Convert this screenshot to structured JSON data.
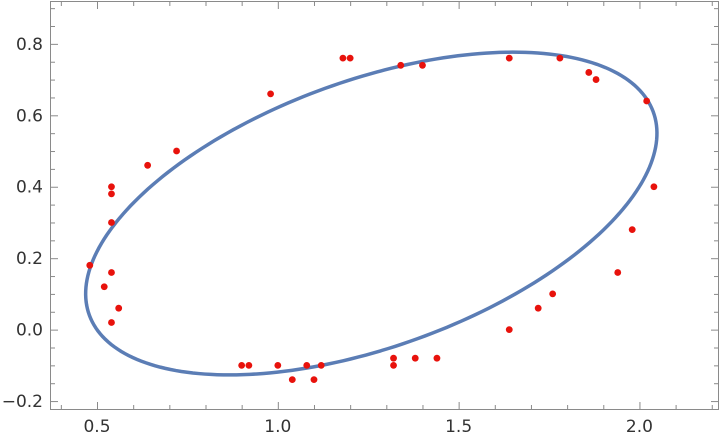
{
  "chart_data": {
    "type": "scatter",
    "title": "",
    "xlabel": "",
    "ylabel": "",
    "xlim": [
      0.37,
      2.22
    ],
    "ylim": [
      -0.225,
      0.92
    ],
    "x_ticks": [
      0.5,
      1.0,
      1.5,
      2.0
    ],
    "x_tick_labels": [
      "0.5",
      "1.0",
      "1.5",
      "2.0"
    ],
    "y_ticks": [
      -0.2,
      0.0,
      0.2,
      0.4,
      0.6,
      0.8
    ],
    "y_tick_labels": [
      "−0.2",
      "0.0",
      "0.2",
      "0.4",
      "0.6",
      "0.8"
    ],
    "grid": false,
    "legend": "none",
    "colors": {
      "points": "#e8120c",
      "ellipse": "#5b7db5",
      "frame": "#8a8a8a"
    },
    "points": [
      [
        0.48,
        0.18
      ],
      [
        0.52,
        0.12
      ],
      [
        0.54,
        0.16
      ],
      [
        0.54,
        0.3
      ],
      [
        0.54,
        0.38
      ],
      [
        0.54,
        0.4
      ],
      [
        0.56,
        0.06
      ],
      [
        0.54,
        0.02
      ],
      [
        0.64,
        0.46
      ],
      [
        0.72,
        0.5
      ],
      [
        0.98,
        0.66
      ],
      [
        1.18,
        0.76
      ],
      [
        1.2,
        0.76
      ],
      [
        1.34,
        0.74
      ],
      [
        1.4,
        0.74
      ],
      [
        1.64,
        0.76
      ],
      [
        1.78,
        0.76
      ],
      [
        1.86,
        0.72
      ],
      [
        1.88,
        0.7
      ],
      [
        2.02,
        0.64
      ],
      [
        2.04,
        0.4
      ],
      [
        1.98,
        0.28
      ],
      [
        1.94,
        0.16
      ],
      [
        1.76,
        0.1
      ],
      [
        1.72,
        0.06
      ],
      [
        1.64,
        0.0
      ],
      [
        1.44,
        -0.08
      ],
      [
        1.38,
        -0.08
      ],
      [
        1.32,
        -0.08
      ],
      [
        1.32,
        -0.1
      ],
      [
        1.12,
        -0.1
      ],
      [
        1.08,
        -0.1
      ],
      [
        1.1,
        -0.14
      ],
      [
        1.04,
        -0.14
      ],
      [
        1.0,
        -0.1
      ],
      [
        0.92,
        -0.1
      ],
      [
        0.9,
        -0.1
      ]
    ],
    "ellipse": {
      "center": [
        1.2585,
        0.325
      ],
      "semi_major": 0.83,
      "semi_minor": 0.373,
      "angle_deg": 20.1
    }
  }
}
